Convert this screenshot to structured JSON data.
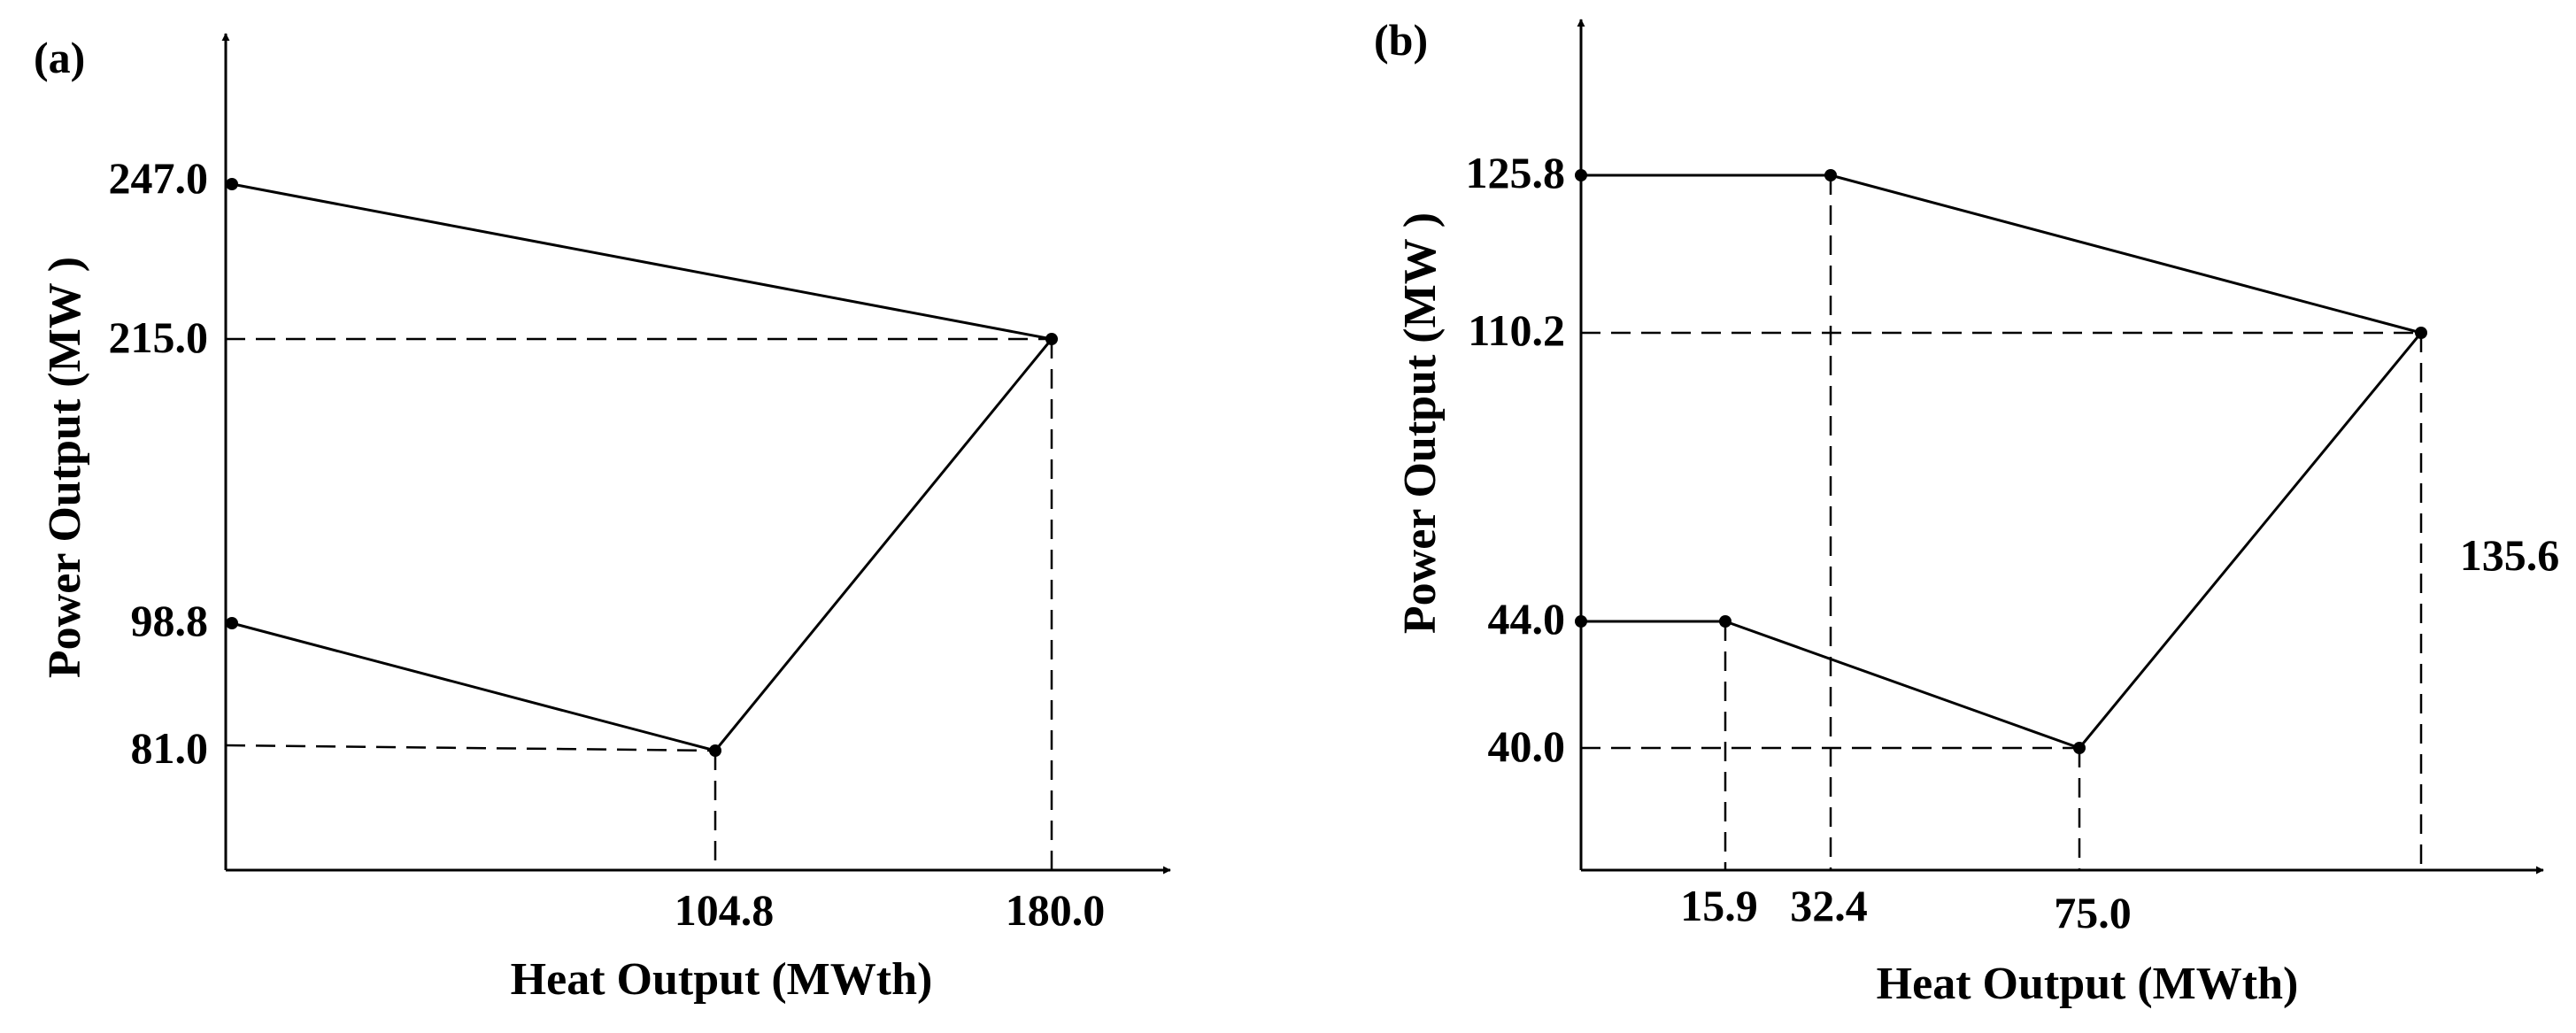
{
  "chart_data": [
    {
      "type": "line",
      "panel_label": "(a)",
      "xlabel": "Heat Output (MWth)",
      "ylabel": "Power Output (MW )",
      "region_vertices": [
        {
          "x": 0,
          "y": 247.0
        },
        {
          "x": 180.0,
          "y": 215.0
        },
        {
          "x": 104.8,
          "y": 81.0
        },
        {
          "x": 0,
          "y": 98.8
        }
      ],
      "x_ticks": [
        "104.8",
        "180.0"
      ],
      "y_ticks": [
        "247.0",
        "215.0",
        "98.8",
        "81.0"
      ]
    },
    {
      "type": "line",
      "panel_label": "(b)",
      "xlabel": "Heat Output (MWth)",
      "ylabel": "Power Output (MW )",
      "region_vertices": [
        {
          "x": 0,
          "y": 125.8
        },
        {
          "x": 32.4,
          "y": 125.8
        },
        {
          "x": 135.6,
          "y": 110.2
        },
        {
          "x": 75.0,
          "y": 40.0
        },
        {
          "x": 15.9,
          "y": 44.0
        },
        {
          "x": 0,
          "y": 44.0
        }
      ],
      "x_ticks": [
        "15.9",
        "32.4",
        "75.0"
      ],
      "y_ticks": [
        "125.8",
        "110.2",
        "44.0",
        "40.0"
      ],
      "annotations": [
        "135.6"
      ]
    }
  ]
}
